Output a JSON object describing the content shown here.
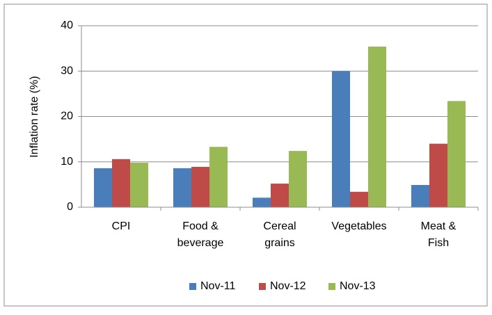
{
  "chart_data": {
    "type": "bar",
    "y_label": "Inflation rate (%)",
    "categories": [
      "CPI",
      "Food & beverage",
      "Cereal grains",
      "Vegetables",
      "Meat & Fish"
    ],
    "series": [
      {
        "name": "Nov-11",
        "color": "#4a7ebb",
        "values": [
          8.6,
          8.6,
          2.1,
          30.0,
          4.9
        ]
      },
      {
        "name": "Nov-12",
        "color": "#be4b48",
        "values": [
          10.6,
          8.9,
          5.2,
          3.4,
          14.0
        ]
      },
      {
        "name": "Nov-13",
        "color": "#98b954",
        "values": [
          9.8,
          13.3,
          12.4,
          35.4,
          23.4
        ]
      }
    ],
    "ylim": [
      0,
      40
    ],
    "yticks": [
      0,
      10,
      20,
      30,
      40
    ],
    "grid": true,
    "legend": "bottom"
  }
}
